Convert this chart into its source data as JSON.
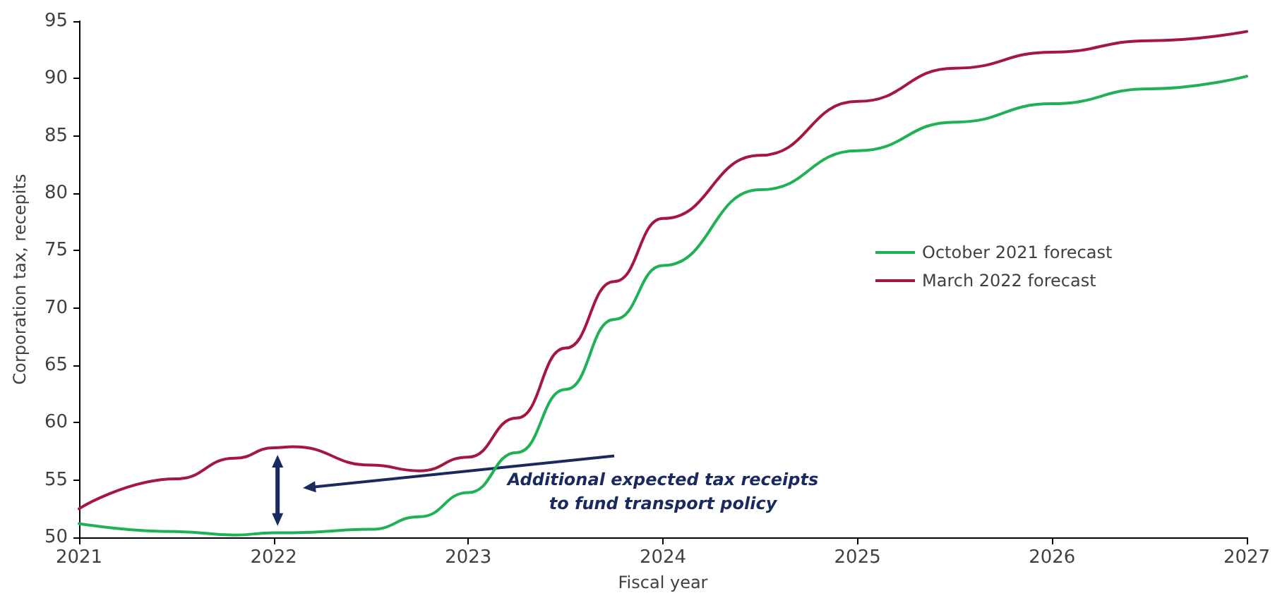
{
  "chart_data": {
    "type": "line",
    "xlabel": "Fiscal year",
    "ylabel": "Corporation tax, recepits",
    "x": [
      2021,
      2021.5,
      2021.8,
      2022,
      2022.1,
      2022.5,
      2022.75,
      2023,
      2023.25,
      2023.5,
      2023.75,
      2024,
      2024.5,
      2025,
      2025.5,
      2026,
      2026.5,
      2027
    ],
    "series": [
      {
        "name": "October 2021 forecast",
        "color": "#1fb254",
        "values": [
          51.2,
          50.5,
          50.2,
          50.4,
          50.4,
          50.7,
          51.8,
          53.9,
          57.4,
          62.9,
          69.0,
          73.7,
          80.3,
          83.7,
          86.2,
          87.8,
          89.1,
          90.2
        ]
      },
      {
        "name": "March 2022 forecast",
        "color": "#a5173f",
        "values": [
          52.5,
          55.1,
          56.9,
          57.8,
          57.9,
          56.3,
          55.8,
          57.0,
          60.4,
          66.5,
          72.3,
          77.8,
          83.3,
          88.0,
          90.9,
          92.3,
          93.3,
          94.1
        ]
      }
    ],
    "xlim": [
      2021,
      2027
    ],
    "xticks": [
      2021,
      2022,
      2023,
      2024,
      2025,
      2026,
      2027
    ],
    "ylim": [
      50,
      95
    ],
    "yticks": [
      50,
      55,
      60,
      65,
      70,
      75,
      80,
      85,
      90,
      95
    ],
    "grid": false,
    "legend": "right",
    "marker": "none",
    "line_style": "solid",
    "annotations": [
      "Additional expected tax receipts\nto fund transport policy"
    ]
  }
}
